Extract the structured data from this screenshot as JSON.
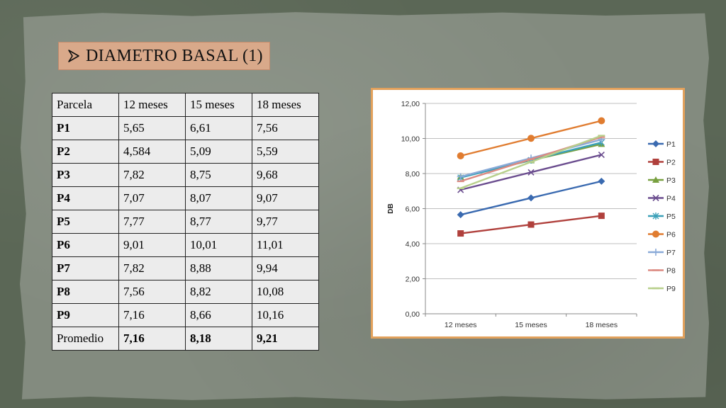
{
  "title": {
    "text": "DIAMETRO BASAL (1)",
    "bullet_icon": "arrow-bullet-icon"
  },
  "table": {
    "headers": [
      "Parcela",
      "12 meses",
      "15 meses",
      "18 meses"
    ],
    "rows": [
      [
        "P1",
        "5,65",
        "6,61",
        "7,56"
      ],
      [
        "P2",
        "4,584",
        "5,09",
        "5,59"
      ],
      [
        "P3",
        "7,82",
        "8,75",
        "9,68"
      ],
      [
        "P4",
        "7,07",
        "8,07",
        "9,07"
      ],
      [
        "P5",
        "7,77",
        "8,77",
        "9,77"
      ],
      [
        "P6",
        "9,01",
        "10,01",
        "11,01"
      ],
      [
        "P7",
        "7,82",
        "8,88",
        "9,94"
      ],
      [
        "P8",
        "7,56",
        "8,82",
        "10,08"
      ],
      [
        "P9",
        "7,16",
        "8,66",
        "10,16"
      ]
    ],
    "footer": [
      "Promedio",
      "7,16",
      "8,18",
      "9,21"
    ]
  },
  "chart_data": {
    "type": "line",
    "categories": [
      "12 meses",
      "15 meses",
      "18 meses"
    ],
    "ylabel": "DB",
    "ylim": [
      0,
      12
    ],
    "yticks": [
      "0,00",
      "2,00",
      "4,00",
      "6,00",
      "8,00",
      "10,00",
      "12,00"
    ],
    "grid": true,
    "legend_position": "right",
    "series": [
      {
        "name": "P1",
        "values": [
          5.65,
          6.61,
          7.56
        ],
        "color": "#3a6ab0",
        "marker": "diamond"
      },
      {
        "name": "P2",
        "values": [
          4.584,
          5.09,
          5.59
        ],
        "color": "#b0403c",
        "marker": "square"
      },
      {
        "name": "P3",
        "values": [
          7.82,
          8.75,
          9.68
        ],
        "color": "#78a040",
        "marker": "triangle"
      },
      {
        "name": "P4",
        "values": [
          7.07,
          8.07,
          9.07
        ],
        "color": "#6a4c8e",
        "marker": "x"
      },
      {
        "name": "P5",
        "values": [
          7.77,
          8.77,
          9.77
        ],
        "color": "#3aa0b8",
        "marker": "star"
      },
      {
        "name": "P6",
        "values": [
          9.01,
          10.01,
          11.01
        ],
        "color": "#e07c30",
        "marker": "circle"
      },
      {
        "name": "P7",
        "values": [
          7.82,
          8.88,
          9.94
        ],
        "color": "#8aaad8",
        "marker": "plus"
      },
      {
        "name": "P8",
        "values": [
          7.56,
          8.82,
          10.08
        ],
        "color": "#dc8a82",
        "marker": "dash"
      },
      {
        "name": "P9",
        "values": [
          7.16,
          8.66,
          10.16
        ],
        "color": "#b8d08c",
        "marker": "dash"
      }
    ]
  }
}
